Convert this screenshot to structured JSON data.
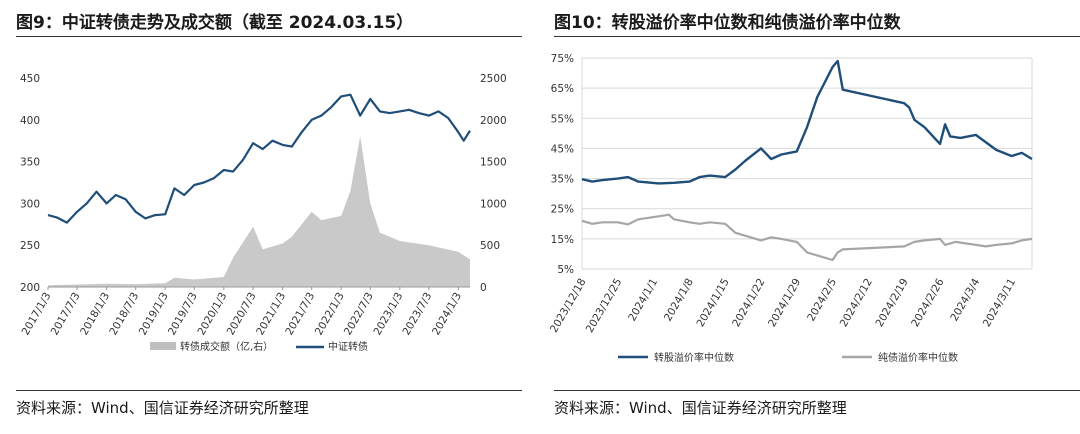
{
  "left": {
    "title": "图9：中证转债走势及成交额（截至 2024.03.15）",
    "source": "资料来源：Wind、国信证券经济研究所整理"
  },
  "right": {
    "title": "图10：转股溢价率中位数和纯债溢价率中位数",
    "source": "资料来源：Wind、国信证券经济研究所整理"
  },
  "chart_data": [
    {
      "type": "line",
      "grid": false,
      "legend_placement": "bottom",
      "x_ticks": [
        "2017/1/3",
        "2017/7/3",
        "2018/1/3",
        "2018/7/3",
        "2019/1/3",
        "2019/7/3",
        "2020/1/3",
        "2020/7/3",
        "2021/1/3",
        "2021/7/3",
        "2022/1/3",
        "2022/7/3",
        "2023/1/3",
        "2023/7/3",
        "2024/1/3"
      ],
      "y_left_ticks": [
        "450",
        "400",
        "350",
        "300",
        "250",
        "200"
      ],
      "y_right_ticks": [
        "2500",
        "2000",
        "1500",
        "1000",
        "500",
        "0"
      ],
      "ylim_left": [
        200,
        450
      ],
      "ylim_right": [
        0,
        2500
      ],
      "series": [
        {
          "name": "中证转债",
          "axis": "left",
          "color": "#1f4e79",
          "points": [
            [
              "2017/1/3",
              286
            ],
            [
              "2017/3/1",
              283
            ],
            [
              "2017/5/1",
              277
            ],
            [
              "2017/7/3",
              290
            ],
            [
              "2017/9/1",
              300
            ],
            [
              "2017/11/1",
              314
            ],
            [
              "2018/1/3",
              300
            ],
            [
              "2018/3/1",
              310
            ],
            [
              "2018/5/1",
              305
            ],
            [
              "2018/7/3",
              290
            ],
            [
              "2018/9/1",
              282
            ],
            [
              "2018/11/1",
              286
            ],
            [
              "2019/1/3",
              287
            ],
            [
              "2019/3/1",
              318
            ],
            [
              "2019/5/1",
              310
            ],
            [
              "2019/7/3",
              322
            ],
            [
              "2019/9/1",
              325
            ],
            [
              "2019/11/1",
              330
            ],
            [
              "2020/1/3",
              340
            ],
            [
              "2020/3/1",
              338
            ],
            [
              "2020/5/1",
              352
            ],
            [
              "2020/7/3",
              372
            ],
            [
              "2020/9/1",
              365
            ],
            [
              "2020/11/1",
              375
            ],
            [
              "2021/1/3",
              370
            ],
            [
              "2021/3/1",
              368
            ],
            [
              "2021/5/1",
              385
            ],
            [
              "2021/7/3",
              400
            ],
            [
              "2021/9/1",
              405
            ],
            [
              "2021/11/1",
              415
            ],
            [
              "2022/1/3",
              428
            ],
            [
              "2022/3/1",
              430
            ],
            [
              "2022/5/1",
              405
            ],
            [
              "2022/7/3",
              425
            ],
            [
              "2022/9/1",
              410
            ],
            [
              "2022/11/1",
              408
            ],
            [
              "2023/1/3",
              410
            ],
            [
              "2023/3/1",
              412
            ],
            [
              "2023/5/1",
              408
            ],
            [
              "2023/7/3",
              405
            ],
            [
              "2023/9/1",
              410
            ],
            [
              "2023/11/1",
              402
            ],
            [
              "2024/1/3",
              385
            ],
            [
              "2024/2/5",
              375
            ],
            [
              "2024/3/15",
              387
            ]
          ]
        },
        {
          "name": "转债成交额（亿,右）",
          "axis": "right",
          "type": "area",
          "color": "#bfbfbf",
          "points": [
            [
              "2017/1/3",
              20
            ],
            [
              "2017/7/3",
              30
            ],
            [
              "2018/1/3",
              40
            ],
            [
              "2018/7/3",
              35
            ],
            [
              "2019/1/3",
              45
            ],
            [
              "2019/3/1",
              110
            ],
            [
              "2019/7/3",
              90
            ],
            [
              "2020/1/3",
              120
            ],
            [
              "2020/3/1",
              350
            ],
            [
              "2020/7/3",
              720
            ],
            [
              "2020/9/1",
              450
            ],
            [
              "2021/1/3",
              520
            ],
            [
              "2021/3/1",
              600
            ],
            [
              "2021/7/3",
              900
            ],
            [
              "2021/9/1",
              800
            ],
            [
              "2022/1/3",
              850
            ],
            [
              "2022/3/1",
              1150
            ],
            [
              "2022/5/1",
              1800
            ],
            [
              "2022/7/3",
              1000
            ],
            [
              "2022/9/1",
              650
            ],
            [
              "2023/1/3",
              550
            ],
            [
              "2023/7/3",
              500
            ],
            [
              "2024/1/3",
              420
            ],
            [
              "2024/3/15",
              330
            ]
          ]
        }
      ]
    },
    {
      "type": "line",
      "grid": true,
      "legend_placement": "bottom",
      "x_ticks": [
        "2023/12/18",
        "2023/12/25",
        "2024/1/1",
        "2024/1/8",
        "2024/1/15",
        "2024/1/22",
        "2024/1/29",
        "2024/2/5",
        "2024/2/12",
        "2024/2/19",
        "2024/2/26",
        "2024/3/4",
        "2024/3/11"
      ],
      "y_ticks": [
        "75%",
        "65%",
        "55%",
        "45%",
        "35%",
        "25%",
        "15%",
        "5%"
      ],
      "ylim": [
        5,
        75
      ],
      "series": [
        {
          "name": "转股溢价率中位数",
          "color": "#1f4e79",
          "points": [
            [
              "2023/12/18",
              34.8
            ],
            [
              "2023/12/20",
              34.0
            ],
            [
              "2023/12/22",
              34.5
            ],
            [
              "2023/12/25",
              35.0
            ],
            [
              "2023/12/27",
              35.5
            ],
            [
              "2023/12/29",
              34.0
            ],
            [
              "2024/1/2",
              33.4
            ],
            [
              "2024/1/5",
              33.6
            ],
            [
              "2024/1/8",
              34.0
            ],
            [
              "2024/1/10",
              35.5
            ],
            [
              "2024/1/12",
              36.0
            ],
            [
              "2024/1/15",
              35.5
            ],
            [
              "2024/1/17",
              38.0
            ],
            [
              "2024/1/19",
              41.0
            ],
            [
              "2024/1/22",
              45.0
            ],
            [
              "2024/1/24",
              41.5
            ],
            [
              "2024/1/26",
              43.0
            ],
            [
              "2024/1/29",
              44.0
            ],
            [
              "2024/1/31",
              52.0
            ],
            [
              "2024/2/2",
              62.0
            ],
            [
              "2024/2/5",
              72.0
            ],
            [
              "2024/2/6",
              74.0
            ],
            [
              "2024/2/7",
              64.5
            ],
            [
              "2024/2/19",
              60.0
            ],
            [
              "2024/2/20",
              58.5
            ],
            [
              "2024/2/21",
              54.5
            ],
            [
              "2024/2/23",
              52.0
            ],
            [
              "2024/2/26",
              46.5
            ],
            [
              "2024/2/27",
              53.0
            ],
            [
              "2024/2/28",
              49.0
            ],
            [
              "2024/3/1",
              48.5
            ],
            [
              "2024/3/4",
              49.5
            ],
            [
              "2024/3/6",
              47.0
            ],
            [
              "2024/3/8",
              44.5
            ],
            [
              "2024/3/11",
              42.5
            ],
            [
              "2024/3/13",
              43.5
            ],
            [
              "2024/3/15",
              41.5
            ]
          ]
        },
        {
          "name": "纯债溢价率中位数",
          "color": "#a6a6a6",
          "points": [
            [
              "2023/12/18",
              21.0
            ],
            [
              "2023/12/20",
              20.0
            ],
            [
              "2023/12/22",
              20.5
            ],
            [
              "2023/12/25",
              20.5
            ],
            [
              "2023/12/27",
              19.8
            ],
            [
              "2023/12/29",
              21.5
            ],
            [
              "2024/1/2",
              22.5
            ],
            [
              "2024/1/4",
              23.0
            ],
            [
              "2024/1/5",
              21.5
            ],
            [
              "2024/1/8",
              20.5
            ],
            [
              "2024/1/10",
              20.0
            ],
            [
              "2024/1/12",
              20.5
            ],
            [
              "2024/1/15",
              20.0
            ],
            [
              "2024/1/17",
              17.0
            ],
            [
              "2024/1/19",
              16.0
            ],
            [
              "2024/1/22",
              14.5
            ],
            [
              "2024/1/24",
              15.5
            ],
            [
              "2024/1/26",
              15.0
            ],
            [
              "2024/1/29",
              14.0
            ],
            [
              "2024/1/31",
              10.5
            ],
            [
              "2024/2/2",
              9.5
            ],
            [
              "2024/2/5",
              8.0
            ],
            [
              "2024/2/6",
              10.5
            ],
            [
              "2024/2/7",
              11.5
            ],
            [
              "2024/2/19",
              12.5
            ],
            [
              "2024/2/21",
              14.0
            ],
            [
              "2024/2/23",
              14.5
            ],
            [
              "2024/2/26",
              15.0
            ],
            [
              "2024/2/27",
              13.0
            ],
            [
              "2024/2/29",
              14.0
            ],
            [
              "2024/3/4",
              13.0
            ],
            [
              "2024/3/6",
              12.5
            ],
            [
              "2024/3/8",
              13.0
            ],
            [
              "2024/3/11",
              13.5
            ],
            [
              "2024/3/13",
              14.5
            ],
            [
              "2024/3/15",
              15.0
            ]
          ]
        }
      ]
    }
  ]
}
